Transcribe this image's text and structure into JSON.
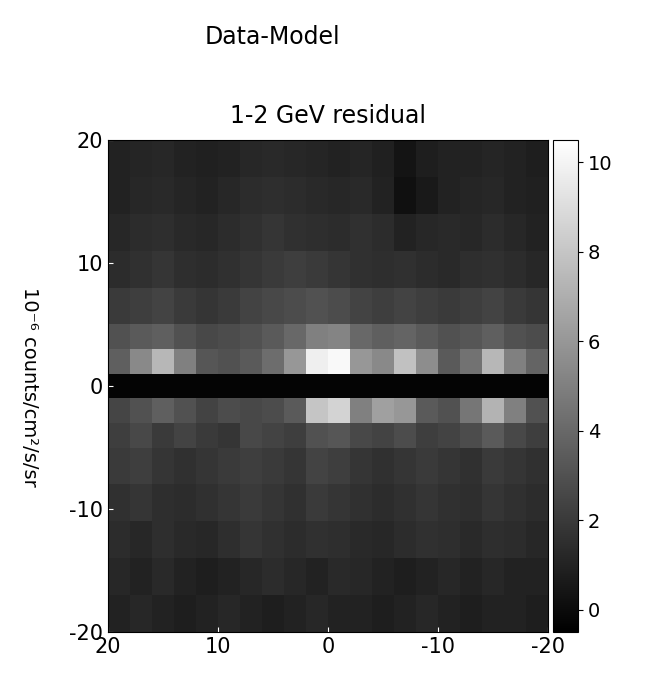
{
  "chart_data": {
    "type": "heatmap",
    "subtitle": "Data-Model",
    "title": "1-2 GeV residual",
    "colorbar_label": "10⁻⁶ counts/cm²/s/sr",
    "color": "gray",
    "x_edges": [
      20,
      18,
      16,
      14,
      12,
      10,
      8,
      6,
      4,
      2,
      0,
      -2,
      -4,
      -6,
      -8,
      -10,
      -12,
      -14,
      -16,
      -18,
      -20
    ],
    "y_edges": [
      -20,
      -17,
      -14,
      -11,
      -8,
      -5,
      -3,
      -1,
      1,
      3,
      5,
      8,
      11,
      14,
      17,
      20
    ],
    "cells": [
      [
        1,
        1.2,
        1,
        0.8,
        1,
        1.2,
        1,
        0.8,
        1,
        1.2,
        1,
        1,
        0.8,
        1,
        1.2,
        1,
        0.8,
        1,
        1,
        0.8
      ],
      [
        1.2,
        1,
        1.3,
        1,
        0.8,
        1,
        1.2,
        1.4,
        1.2,
        1,
        1.3,
        1.2,
        1,
        0.8,
        1,
        1.2,
        1,
        1.2,
        1,
        1
      ],
      [
        1.4,
        1.2,
        1.5,
        1.3,
        1.2,
        1.5,
        1.8,
        1.6,
        1.4,
        1.6,
        1.5,
        1.3,
        1.2,
        1.4,
        1.6,
        1.5,
        1.3,
        1.5,
        1.4,
        1.2
      ],
      [
        1.6,
        1.8,
        1.5,
        1.4,
        1.6,
        1.8,
        2,
        1.8,
        1.6,
        2,
        1.8,
        1.6,
        1.4,
        1.6,
        1.8,
        1.6,
        1.5,
        1.8,
        1.6,
        1.4
      ],
      [
        2,
        2.2,
        1.8,
        1.6,
        1.8,
        2,
        2.2,
        2,
        1.8,
        2.4,
        2.2,
        1.8,
        1.6,
        1.8,
        2,
        1.8,
        1.6,
        2,
        1.8,
        1.6
      ],
      [
        2.2,
        2.6,
        2,
        2.4,
        2,
        1.8,
        2.6,
        2.4,
        2.2,
        3,
        3.2,
        2.6,
        2.4,
        2.8,
        2.2,
        2.4,
        2.8,
        3.4,
        2.6,
        2.2
      ],
      [
        2.5,
        3,
        3.6,
        3,
        2.4,
        2.8,
        2.6,
        2.8,
        3.4,
        8,
        8.6,
        5,
        6.4,
        6,
        3.4,
        3,
        4.6,
        7.2,
        5,
        3
      ],
      [
        -0.3,
        -0.3,
        -0.3,
        -0.3,
        -0.3,
        -0.3,
        -0.3,
        -0.3,
        -0.3,
        -0.3,
        -0.3,
        -0.3,
        -0.3,
        -0.3,
        -0.3,
        -0.3,
        -0.3,
        -0.3,
        -0.3,
        -0.3
      ],
      [
        3.6,
        5.4,
        7.4,
        5,
        3.2,
        3,
        3.4,
        4.2,
        6,
        9.8,
        10.2,
        6,
        5.4,
        7.8,
        5.6,
        3.4,
        4.4,
        7.4,
        5,
        3.8
      ],
      [
        3,
        3.4,
        3.6,
        3,
        2.6,
        2.8,
        3,
        3.4,
        4,
        5,
        5.2,
        4,
        3.6,
        3.8,
        3.4,
        3,
        3.2,
        3.6,
        3,
        2.8
      ],
      [
        2,
        2.2,
        2.4,
        2,
        1.8,
        2,
        2.4,
        2.6,
        2.8,
        3,
        2.8,
        2.4,
        2.2,
        2.4,
        2.2,
        2,
        2.2,
        2.4,
        2,
        1.8
      ],
      [
        1.4,
        1.6,
        1.8,
        1.5,
        1.4,
        1.6,
        1.8,
        2,
        2.2,
        2,
        1.8,
        1.6,
        1.5,
        1.6,
        1.4,
        1.3,
        1.5,
        1.6,
        1.4,
        1.2
      ],
      [
        1.2,
        1.4,
        1.5,
        1.3,
        1.2,
        1.4,
        1.6,
        1.8,
        1.6,
        1.5,
        1.4,
        1.6,
        1.4,
        1,
        1.2,
        1.3,
        1.2,
        1.4,
        1.2,
        1
      ],
      [
        1,
        1.2,
        1.3,
        1.1,
        1,
        1.2,
        1.4,
        1.5,
        1.4,
        1.3,
        1.2,
        1.3,
        1,
        0.2,
        0.6,
        1,
        1.1,
        1.2,
        1,
        0.9
      ],
      [
        1,
        1.1,
        1.2,
        1,
        0.9,
        1,
        1.2,
        1.3,
        1.2,
        1.1,
        1,
        1.1,
        0.9,
        0.4,
        0.8,
        1,
        1,
        1.1,
        1,
        0.8
      ]
    ],
    "xlim": [
      20,
      -20
    ],
    "ylim": [
      -20,
      20
    ],
    "xticks": [
      20,
      10,
      0,
      -10,
      -20
    ],
    "yticks": [
      -20,
      -10,
      0,
      10,
      20
    ],
    "colorbar_range": [
      -0.5,
      10.5
    ],
    "colorbar_ticks": [
      0,
      2,
      4,
      6,
      8,
      10
    ]
  }
}
